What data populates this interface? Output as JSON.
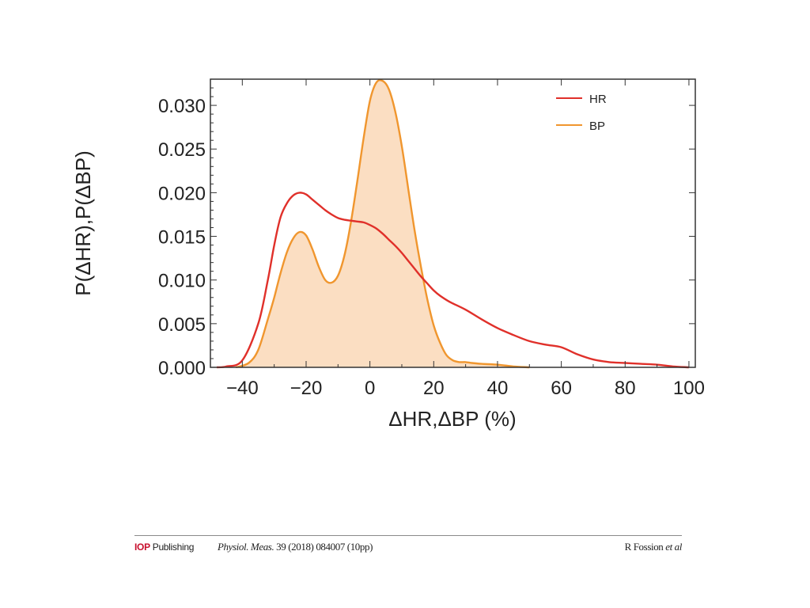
{
  "chart_data": {
    "type": "area",
    "xlabel": "ΔHR,ΔBP (%)",
    "ylabel": "P(ΔHR),P(ΔBP)",
    "xlim": [
      -50,
      102
    ],
    "ylim": [
      0,
      0.033
    ],
    "x_ticks": [
      -40,
      -20,
      0,
      20,
      40,
      60,
      80,
      100
    ],
    "x_tick_labels": [
      "−40",
      "−20",
      "0",
      "20",
      "40",
      "60",
      "80",
      "100"
    ],
    "y_ticks": [
      0,
      0.005,
      0.01,
      0.015,
      0.02,
      0.025,
      0.03
    ],
    "y_tick_labels": [
      "0.000",
      "0.005",
      "0.010",
      "0.015",
      "0.020",
      "0.025",
      "0.030"
    ],
    "grid": false,
    "legend": {
      "placement": "top-right",
      "entries": [
        "HR",
        "BP"
      ]
    },
    "series": [
      {
        "name": "HR",
        "color": "#e0302a",
        "filled": false,
        "x": [
          -48,
          -45,
          -40,
          -35,
          -32,
          -30,
          -28,
          -26,
          -24,
          -22,
          -20,
          -18,
          -16,
          -14,
          -12,
          -10,
          -8,
          -6,
          -4,
          -2,
          0,
          2,
          4,
          6,
          8,
          10,
          12,
          14,
          16,
          18,
          20,
          22,
          25,
          30,
          35,
          40,
          45,
          50,
          55,
          60,
          65,
          70,
          75,
          80,
          85,
          90,
          95,
          100
        ],
        "y": [
          0,
          0.0001,
          0.0008,
          0.005,
          0.01,
          0.014,
          0.0172,
          0.0188,
          0.0197,
          0.02,
          0.0198,
          0.0192,
          0.0186,
          0.018,
          0.0175,
          0.0171,
          0.0169,
          0.0168,
          0.0167,
          0.0166,
          0.0163,
          0.0159,
          0.0153,
          0.0146,
          0.0139,
          0.0131,
          0.0122,
          0.0113,
          0.0104,
          0.0096,
          0.0088,
          0.0082,
          0.0075,
          0.0066,
          0.0055,
          0.0045,
          0.0037,
          0.003,
          0.0026,
          0.0023,
          0.0015,
          0.0009,
          0.0006,
          0.0005,
          0.0004,
          0.0003,
          0.0001,
          0
        ]
      },
      {
        "name": "BP",
        "color": "#f0962e",
        "filled": true,
        "fill_color": "#fbdec2",
        "x": [
          -42,
          -38,
          -35,
          -32,
          -30,
          -28,
          -26,
          -24,
          -22,
          -20,
          -18,
          -16,
          -14,
          -12,
          -10,
          -8,
          -6,
          -4,
          -2,
          0,
          2,
          4,
          6,
          8,
          10,
          12,
          14,
          16,
          18,
          20,
          22,
          24,
          26,
          28,
          30,
          32,
          35,
          40,
          45,
          50
        ],
        "y": [
          0,
          0.0005,
          0.002,
          0.0055,
          0.008,
          0.0108,
          0.0132,
          0.0148,
          0.0155,
          0.0151,
          0.0135,
          0.0115,
          0.01,
          0.0097,
          0.0105,
          0.0128,
          0.0165,
          0.0212,
          0.0262,
          0.0305,
          0.0326,
          0.0328,
          0.0318,
          0.0292,
          0.0253,
          0.0205,
          0.0157,
          0.0115,
          0.0078,
          0.0048,
          0.0028,
          0.0014,
          0.0008,
          0.0006,
          0.0006,
          0.0005,
          0.0004,
          0.0003,
          0.0001,
          0
        ]
      }
    ]
  },
  "footer": {
    "publisher_mark": "IOP",
    "publisher_name": "Publishing",
    "journal": "Physiol. Meas.",
    "citation": "39 (2018) 084007 (10pp)",
    "authors": "R Fossion",
    "authors_suffix": "et al"
  }
}
